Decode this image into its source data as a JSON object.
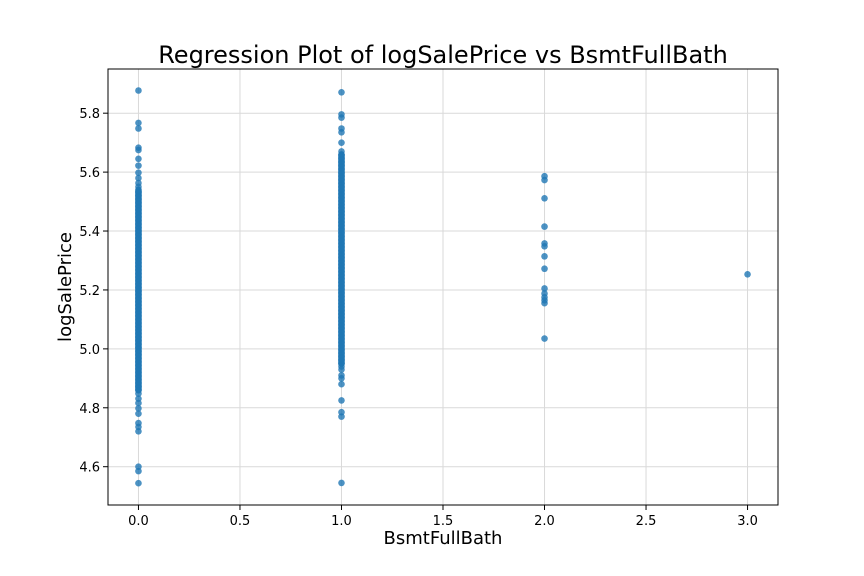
{
  "chart_data": {
    "type": "scatter",
    "title": "Regression Plot of logSalePrice vs BsmtFullBath",
    "xlabel": "BsmtFullBath",
    "ylabel": "logSalePrice",
    "xlim": [
      -0.15,
      3.15
    ],
    "ylim": [
      4.47,
      5.95
    ],
    "xticks": [
      "0.0",
      "0.5",
      "1.0",
      "1.5",
      "2.0",
      "2.5",
      "3.0"
    ],
    "yticks": [
      "4.6",
      "4.8",
      "5.0",
      "5.2",
      "5.4",
      "5.6",
      "5.8"
    ],
    "grid": true,
    "marker_color": "#1f77b4",
    "x_columns": [
      0,
      1,
      2,
      3
    ],
    "dense_ranges": [
      {
        "x": 0,
        "from": 4.86,
        "to": 5.54
      },
      {
        "x": 1,
        "from": 4.95,
        "to": 5.66
      }
    ],
    "points": [
      {
        "x": 0,
        "y": 5.877
      },
      {
        "x": 0,
        "y": 5.767
      },
      {
        "x": 0,
        "y": 5.748
      },
      {
        "x": 0,
        "y": 5.683
      },
      {
        "x": 0,
        "y": 5.675
      },
      {
        "x": 0,
        "y": 5.645
      },
      {
        "x": 0,
        "y": 5.622
      },
      {
        "x": 0,
        "y": 5.598
      },
      {
        "x": 0,
        "y": 5.58
      },
      {
        "x": 0,
        "y": 5.563
      },
      {
        "x": 0,
        "y": 5.55
      },
      {
        "x": 0,
        "y": 4.848
      },
      {
        "x": 0,
        "y": 4.831
      },
      {
        "x": 0,
        "y": 4.816
      },
      {
        "x": 0,
        "y": 4.798
      },
      {
        "x": 0,
        "y": 4.78
      },
      {
        "x": 0,
        "y": 4.748
      },
      {
        "x": 0,
        "y": 4.735
      },
      {
        "x": 0,
        "y": 4.72
      },
      {
        "x": 0,
        "y": 4.6
      },
      {
        "x": 0,
        "y": 4.585
      },
      {
        "x": 0,
        "y": 4.544
      },
      {
        "x": 1,
        "y": 5.871
      },
      {
        "x": 1,
        "y": 5.796
      },
      {
        "x": 1,
        "y": 5.785
      },
      {
        "x": 1,
        "y": 5.748
      },
      {
        "x": 1,
        "y": 5.735
      },
      {
        "x": 1,
        "y": 5.7
      },
      {
        "x": 1,
        "y": 5.67
      },
      {
        "x": 1,
        "y": 4.94
      },
      {
        "x": 1,
        "y": 4.93
      },
      {
        "x": 1,
        "y": 4.91
      },
      {
        "x": 1,
        "y": 4.9
      },
      {
        "x": 1,
        "y": 4.88
      },
      {
        "x": 1,
        "y": 4.825
      },
      {
        "x": 1,
        "y": 4.785
      },
      {
        "x": 1,
        "y": 4.77
      },
      {
        "x": 1,
        "y": 4.545
      },
      {
        "x": 2,
        "y": 5.586
      },
      {
        "x": 2,
        "y": 5.573
      },
      {
        "x": 2,
        "y": 5.511
      },
      {
        "x": 2,
        "y": 5.415
      },
      {
        "x": 2,
        "y": 5.358
      },
      {
        "x": 2,
        "y": 5.348
      },
      {
        "x": 2,
        "y": 5.314
      },
      {
        "x": 2,
        "y": 5.272
      },
      {
        "x": 2,
        "y": 5.205
      },
      {
        "x": 2,
        "y": 5.188
      },
      {
        "x": 2,
        "y": 5.175
      },
      {
        "x": 2,
        "y": 5.165
      },
      {
        "x": 2,
        "y": 5.155
      },
      {
        "x": 2,
        "y": 5.035
      },
      {
        "x": 3,
        "y": 5.253
      }
    ]
  }
}
